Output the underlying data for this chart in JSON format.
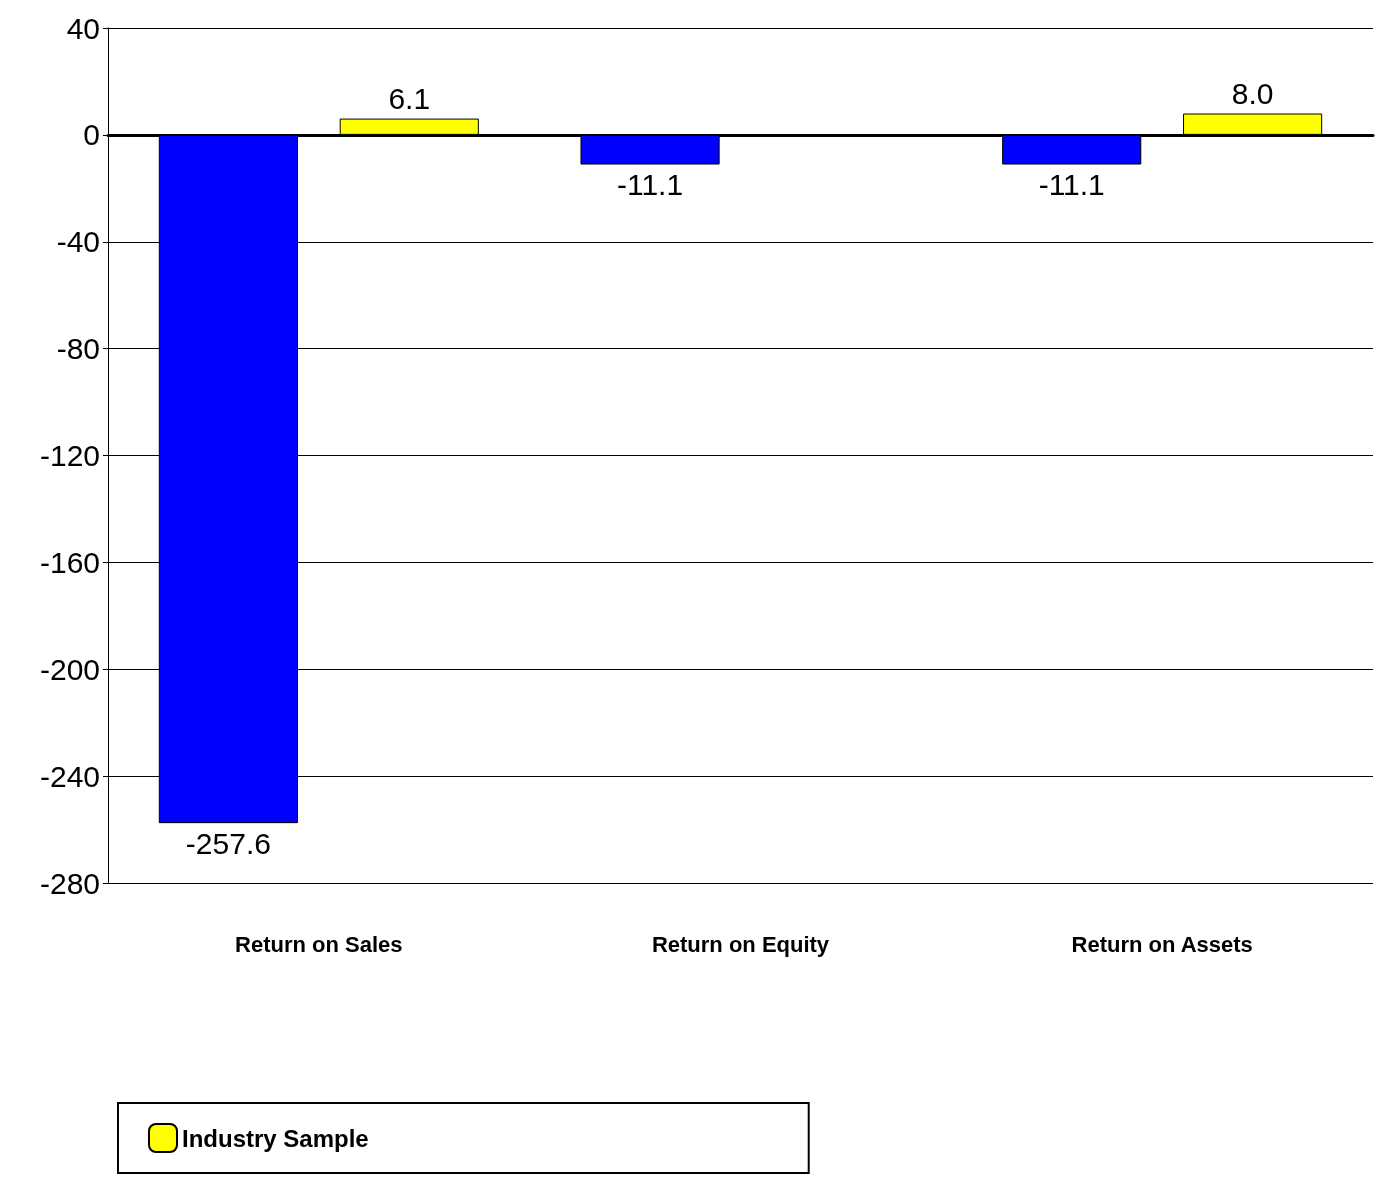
{
  "chart_data": {
    "type": "bar",
    "categories": [
      "Return on Sales",
      "Return on Equity",
      "Return on Assets"
    ],
    "series": [
      {
        "color": "#0000ff",
        "values": [
          -257.6,
          -11.1,
          -11.1
        ],
        "value_labels": [
          "-257.6",
          "-11.1",
          "-11.1"
        ]
      },
      {
        "name": "Industry Sample",
        "color": "#ffff00",
        "values": [
          6.1,
          null,
          8.0
        ],
        "value_labels": [
          "6.1",
          null,
          "8.0"
        ]
      }
    ],
    "ylim": [
      -280,
      40
    ],
    "yticks": [
      -280,
      -240,
      -200,
      -160,
      -120,
      -80,
      -40,
      0,
      40
    ],
    "grid": "y",
    "legend": "bottom left"
  }
}
